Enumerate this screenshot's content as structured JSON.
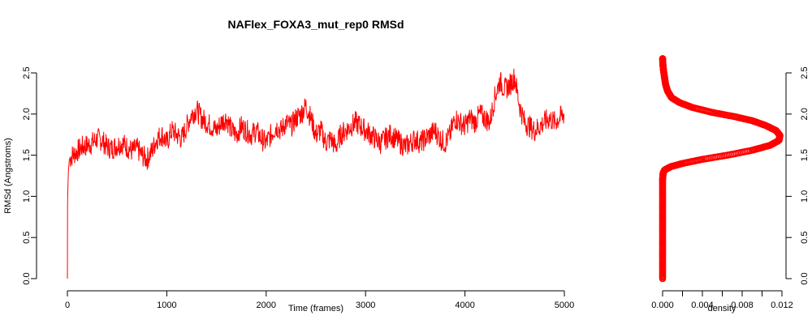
{
  "chart_data": [
    {
      "type": "line",
      "title": "NAFlex_FOXA3_mut_rep0 RMSd",
      "xlabel": "Time (frames)",
      "ylabel": "RMSd (Angstroms)",
      "xlim": [
        0,
        5000
      ],
      "ylim": [
        0,
        2.5
      ],
      "xticks": [
        "0",
        "1000",
        "2000",
        "3000",
        "4000",
        "5000"
      ],
      "yticks": [
        "0.0",
        "0.5",
        "1.0",
        "1.5",
        "2.0",
        "2.5"
      ],
      "series": [
        {
          "color": "#ff0000",
          "x": [
            0,
            2,
            5,
            10,
            20,
            50,
            100,
            150,
            200,
            250,
            300,
            350,
            400,
            450,
            500,
            550,
            600,
            650,
            700,
            750,
            800,
            850,
            900,
            950,
            1000,
            1050,
            1100,
            1150,
            1200,
            1250,
            1300,
            1350,
            1400,
            1450,
            1500,
            1550,
            1600,
            1650,
            1700,
            1750,
            1800,
            1850,
            1900,
            1950,
            2000,
            2050,
            2100,
            2150,
            2200,
            2250,
            2300,
            2350,
            2400,
            2450,
            2500,
            2550,
            2600,
            2650,
            2700,
            2750,
            2800,
            2850,
            2900,
            2950,
            3000,
            3050,
            3100,
            3150,
            3200,
            3250,
            3300,
            3350,
            3400,
            3450,
            3500,
            3550,
            3600,
            3650,
            3700,
            3750,
            3800,
            3850,
            3900,
            3950,
            4000,
            4050,
            4100,
            4150,
            4200,
            4250,
            4300,
            4350,
            4400,
            4450,
            4500,
            4550,
            4600,
            4650,
            4700,
            4750,
            4800,
            4850,
            4900,
            4950,
            5000
          ],
          "values": [
            0.0,
            0.9,
            1.1,
            1.3,
            1.45,
            1.5,
            1.55,
            1.6,
            1.62,
            1.65,
            1.7,
            1.68,
            1.6,
            1.58,
            1.62,
            1.65,
            1.6,
            1.55,
            1.58,
            1.5,
            1.45,
            1.55,
            1.7,
            1.75,
            1.65,
            1.8,
            1.75,
            1.7,
            1.85,
            2.0,
            2.05,
            1.95,
            1.9,
            1.85,
            1.8,
            1.9,
            1.95,
            1.8,
            1.75,
            1.85,
            1.8,
            1.75,
            1.8,
            1.7,
            1.65,
            1.75,
            1.85,
            1.8,
            1.9,
            1.85,
            1.95,
            2.0,
            2.1,
            1.95,
            1.75,
            1.8,
            1.65,
            1.7,
            1.6,
            1.75,
            1.8,
            1.85,
            1.9,
            1.85,
            1.8,
            1.75,
            1.7,
            1.65,
            1.7,
            1.75,
            1.7,
            1.65,
            1.6,
            1.65,
            1.7,
            1.65,
            1.7,
            1.75,
            1.8,
            1.7,
            1.65,
            1.75,
            1.95,
            1.9,
            1.85,
            1.95,
            1.9,
            2.0,
            1.95,
            1.9,
            2.2,
            2.4,
            2.3,
            2.35,
            2.45,
            2.1,
            1.9,
            1.85,
            1.8,
            1.85,
            1.9,
            1.95,
            1.9,
            1.95,
            2.0
          ]
        }
      ]
    },
    {
      "type": "scatter",
      "xlabel": "density",
      "xlim": [
        0,
        0.012
      ],
      "ylim": [
        0,
        2.5
      ],
      "xticks": [
        "0.000",
        "0.004",
        "0.008",
        "0.012"
      ],
      "yticks": [
        "0.0",
        "0.5",
        "1.0",
        "1.5",
        "2.0",
        "2.5"
      ],
      "series": [
        {
          "color": "#ff0000",
          "description_points": "density curve of RMSd values",
          "x": [
            0.0,
            0.0,
            0.0,
            0.0,
            0.0,
            0.0,
            0.0,
            5e-05,
            0.0002,
            0.0008,
            0.002,
            0.004,
            0.0065,
            0.009,
            0.0108,
            0.0117,
            0.0118,
            0.0114,
            0.0104,
            0.009,
            0.0072,
            0.005,
            0.003,
            0.0017,
            0.0009,
            0.0005,
            0.0003,
            0.0002,
            0.0001,
            3e-05,
            0.0
          ],
          "y": [
            0.0,
            0.2,
            0.4,
            0.6,
            0.8,
            1.0,
            1.2,
            1.28,
            1.32,
            1.36,
            1.4,
            1.45,
            1.5,
            1.56,
            1.62,
            1.68,
            1.74,
            1.8,
            1.86,
            1.92,
            1.97,
            2.02,
            2.08,
            2.14,
            2.2,
            2.28,
            2.36,
            2.44,
            2.52,
            2.6,
            2.68
          ]
        }
      ]
    }
  ]
}
